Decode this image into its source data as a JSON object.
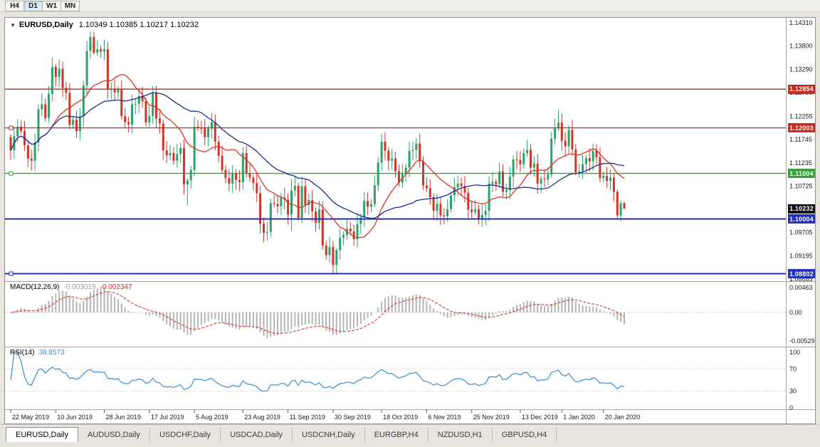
{
  "toolbar": {
    "timeframes": [
      "H4",
      "D1",
      "W1",
      "MN"
    ],
    "active": "D1"
  },
  "chart_data": {
    "type": "candlestick",
    "symbol": "EURUSD",
    "timeframe": "Daily",
    "title_text": "EURUSD,Daily",
    "caret": "▼",
    "ohlc_text": "1.10349 1.10385 1.10217 1.10232",
    "open": 1.10349,
    "high": 1.10385,
    "low": 1.10217,
    "close": 1.10232,
    "price_ticks": [
      "1.14310",
      "1.13800",
      "1.13290",
      "1.12780",
      "1.12255",
      "1.11745",
      "1.11235",
      "1.10725",
      "1.10215",
      "1.09705",
      "1.09195",
      "1.08685"
    ],
    "time_labels": [
      {
        "label": "22 May 2019",
        "i": 0
      },
      {
        "label": "10 Jun 2019",
        "i": 13
      },
      {
        "label": "28 Jun 2019",
        "i": 27
      },
      {
        "label": "17 Jul 2019",
        "i": 40
      },
      {
        "label": "5 Aug 2019",
        "i": 53
      },
      {
        "label": "23 Aug 2019",
        "i": 67
      },
      {
        "label": "11 Sep 2019",
        "i": 80
      },
      {
        "label": "30 Sep 2019",
        "i": 93
      },
      {
        "label": "18 Oct 2019",
        "i": 107
      },
      {
        "label": "6 Nov 2019",
        "i": 120
      },
      {
        "label": "25 Nov 2019",
        "i": 133
      },
      {
        "label": "13 Dec 2019",
        "i": 147
      },
      {
        "label": "1 Jan 2020",
        "i": 159
      },
      {
        "label": "20 Jan 2020",
        "i": 171
      }
    ],
    "hlines": [
      {
        "price": 1.12854,
        "label": "1.12854",
        "color": "#c92a21",
        "thick": 1.3,
        "handle": false
      },
      {
        "price": 1.12003,
        "label": "1.12003",
        "color": "#c92a21",
        "thick": 1.3,
        "handle": true
      },
      {
        "price": 1.11004,
        "label": "1.11004",
        "color": "#2fa533",
        "thick": 1.4,
        "handle": true
      },
      {
        "price": 1.10004,
        "label": "1.10004",
        "color": "#2030bb",
        "thick": 2,
        "handle": false
      },
      {
        "price": 1.08802,
        "label": "1.08802",
        "color": "#2030bb",
        "thick": 2,
        "handle": true
      }
    ],
    "current_price": {
      "value": 1.10232,
      "label": "1.10232",
      "bg": "#0d0d0d"
    },
    "candles": {
      "first_open": 1.118,
      "up_color": "#2aa36a",
      "down_color": "#cf3528",
      "wick_base": 0.0006,
      "wick_amp": 0.0016,
      "wick_overrides": {
        "24": [
          0.0012,
          0.0004
        ],
        "51": [
          0.0005,
          0.0046
        ],
        "81": [
          0.0025,
          0.0036
        ],
        "94": [
          0.0004,
          0.002
        ],
        "158": [
          0.0028,
          0.0005
        ],
        "175": [
          0.0005,
          0.0009
        ],
        "176": [
          0.0006,
          0.0012
        ],
        "177": [
          0.00036,
          0.00015
        ]
      },
      "closes": [
        1.1151,
        1.1182,
        1.1203,
        1.1193,
        1.1162,
        1.1133,
        1.1128,
        1.1168,
        1.1241,
        1.1252,
        1.1222,
        1.1275,
        1.1334,
        1.1312,
        1.133,
        1.1288,
        1.1277,
        1.1207,
        1.1218,
        1.1193,
        1.1225,
        1.1293,
        1.1369,
        1.14,
        1.1365,
        1.1373,
        1.1368,
        1.1373,
        1.1285,
        1.1285,
        1.1278,
        1.1284,
        1.1226,
        1.1213,
        1.1208,
        1.1252,
        1.1253,
        1.127,
        1.1259,
        1.1212,
        1.1226,
        1.1277,
        1.1221,
        1.121,
        1.1151,
        1.114,
        1.1145,
        1.1128,
        1.1143,
        1.1156,
        1.1076,
        1.1085,
        1.1108,
        1.1203,
        1.12,
        1.1199,
        1.118,
        1.1199,
        1.1213,
        1.117,
        1.1139,
        1.1108,
        1.109,
        1.1078,
        1.11,
        1.1086,
        1.1081,
        1.1145,
        1.1101,
        1.1091,
        1.1079,
        1.1057,
        1.099,
        1.097,
        1.0972,
        1.1035,
        1.1033,
        1.1028,
        1.1047,
        1.1043,
        1.101,
        1.1063,
        1.1073,
        1.1003,
        1.1072,
        1.1031,
        1.1042,
        1.1017,
        1.0992,
        1.1021,
        1.0942,
        1.0921,
        1.0939,
        1.0899,
        1.0932,
        1.0959,
        1.0965,
        1.0979,
        1.0973,
        1.0956,
        1.0989,
        1.1004,
        1.104,
        1.1027,
        1.1033,
        1.1074,
        1.1124,
        1.117,
        1.115,
        1.1128,
        1.1133,
        1.1105,
        1.108,
        1.1099,
        1.1113,
        1.115,
        1.1152,
        1.1166,
        1.1127,
        1.1074,
        1.1068,
        1.1048,
        1.1018,
        1.1034,
        1.1008,
        1.1006,
        1.1022,
        1.1052,
        1.107,
        1.1078,
        1.1073,
        1.1058,
        1.1021,
        1.1015,
        1.1022,
        1.1001,
        1.1009,
        1.1018,
        1.1078,
        1.1082,
        1.1077,
        1.1104,
        1.106,
        1.1064,
        1.1093,
        1.1131,
        1.113,
        1.112,
        1.1145,
        1.1152,
        1.1113,
        1.1122,
        1.1078,
        1.1089,
        1.1087,
        1.1098,
        1.1177,
        1.1199,
        1.1212,
        1.1172,
        1.116,
        1.1196,
        1.1153,
        1.1103,
        1.1105,
        1.1121,
        1.1134,
        1.1127,
        1.115,
        1.1136,
        1.109,
        1.1095,
        1.1084,
        1.1091,
        1.106,
        1.1008,
        1.10349,
        1.10232
      ]
    },
    "moving_averages": [
      {
        "period": 13,
        "color": "#d9362a"
      },
      {
        "period": 34,
        "color": "#1d2e8e"
      }
    ]
  },
  "macd": {
    "label": "MACD(12,26,9)",
    "value_main": "-0.003019",
    "value_signal": "-0.002347",
    "axis": [
      "0.00463",
      "0.00",
      "-0.00529"
    ],
    "fast": 12,
    "slow": 26,
    "signal": 9,
    "hist_color": "#b4b4b4",
    "signal_color": "#c9302c"
  },
  "rsi": {
    "label": "RSI(14)",
    "value": "38.8573",
    "period": 14,
    "axis": [
      "100",
      "70",
      "30",
      "0"
    ],
    "levels": [
      70,
      30
    ],
    "color": "#3f8cc8"
  },
  "tabs": [
    {
      "label": "EURUSD,Daily",
      "active": true
    },
    {
      "label": "AUDUSD,Daily",
      "active": false
    },
    {
      "label": "USDCHF,Daily",
      "active": false
    },
    {
      "label": "USDCAD,Daily",
      "active": false
    },
    {
      "label": "USDCNH,Daily",
      "active": false
    },
    {
      "label": "EURGBP,H4",
      "active": false
    },
    {
      "label": "NZDUSD,H1",
      "active": false
    },
    {
      "label": "GBPUSD,H4",
      "active": false
    }
  ]
}
